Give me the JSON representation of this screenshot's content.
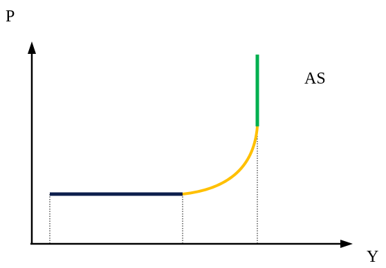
{
  "labels": {
    "y_axis": "P",
    "x_axis": "Y",
    "curve": "AS"
  },
  "colors": {
    "axes": "#000000",
    "horizontal_segment": "#0d1f4d",
    "curved_segment": "#ffc000",
    "vertical_segment": "#00b050",
    "guide_lines": "#000000"
  },
  "segments": [
    {
      "name": "horizontal",
      "shape": "flat line",
      "color_key": "horizontal_segment"
    },
    {
      "name": "curved",
      "shape": "convex rising curve",
      "color_key": "curved_segment"
    },
    {
      "name": "vertical",
      "shape": "vertical line",
      "color_key": "vertical_segment"
    }
  ]
}
